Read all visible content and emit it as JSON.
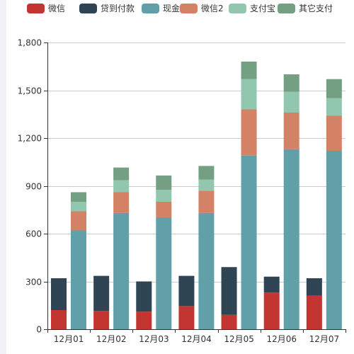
{
  "chart_data": {
    "type": "bar",
    "stacked": true,
    "categories": [
      "12月01",
      "12月02",
      "12月03",
      "12月04",
      "12月05",
      "12月06",
      "12月07"
    ],
    "ylim": [
      0,
      1800
    ],
    "yticks": [
      0,
      300,
      600,
      900,
      1200,
      1500,
      1800
    ],
    "yticks_text": [
      "0",
      "300",
      "600",
      "900",
      "1,200",
      "1,500",
      "1,800"
    ],
    "grid": true,
    "legend_position": "top",
    "stacks": [
      {
        "id": "left",
        "series": [
          {
            "name": "微信",
            "color": "#c23531",
            "values": [
              120,
              115,
              110,
              145,
              90,
              230,
              210
            ]
          },
          {
            "name": "贷到付款",
            "color": "#2f4554",
            "values": [
              200,
              220,
              190,
              190,
              300,
              100,
              110
            ]
          }
        ]
      },
      {
        "id": "right",
        "series": [
          {
            "name": "现金",
            "color": "#61a0a8",
            "values": [
              620,
              730,
              700,
              730,
              1090,
              1130,
              1120
            ]
          },
          {
            "name": "微信2",
            "color": "#d48265",
            "values": [
              120,
              130,
              100,
              140,
              290,
              230,
              220
            ]
          },
          {
            "name": "支付宝",
            "color": "#91c7ae",
            "values": [
              60,
              75,
              75,
              70,
              190,
              130,
              110
            ]
          },
          {
            "name": "其它支付",
            "color": "#749f83",
            "values": [
              60,
              80,
              90,
              85,
              110,
              110,
              120
            ]
          }
        ]
      }
    ],
    "legend": [
      {
        "name": "微信",
        "color": "#c23531"
      },
      {
        "name": "贷到付款",
        "color": "#2f4554"
      },
      {
        "name": "现金",
        "color": "#61a0a8"
      },
      {
        "name": "微信2",
        "color": "#d48265"
      },
      {
        "name": "支付宝",
        "color": "#91c7ae"
      },
      {
        "name": "其它支付",
        "color": "#749f83"
      }
    ],
    "colors": {
      "axis": "#333333",
      "grid": "#cccccc"
    }
  }
}
